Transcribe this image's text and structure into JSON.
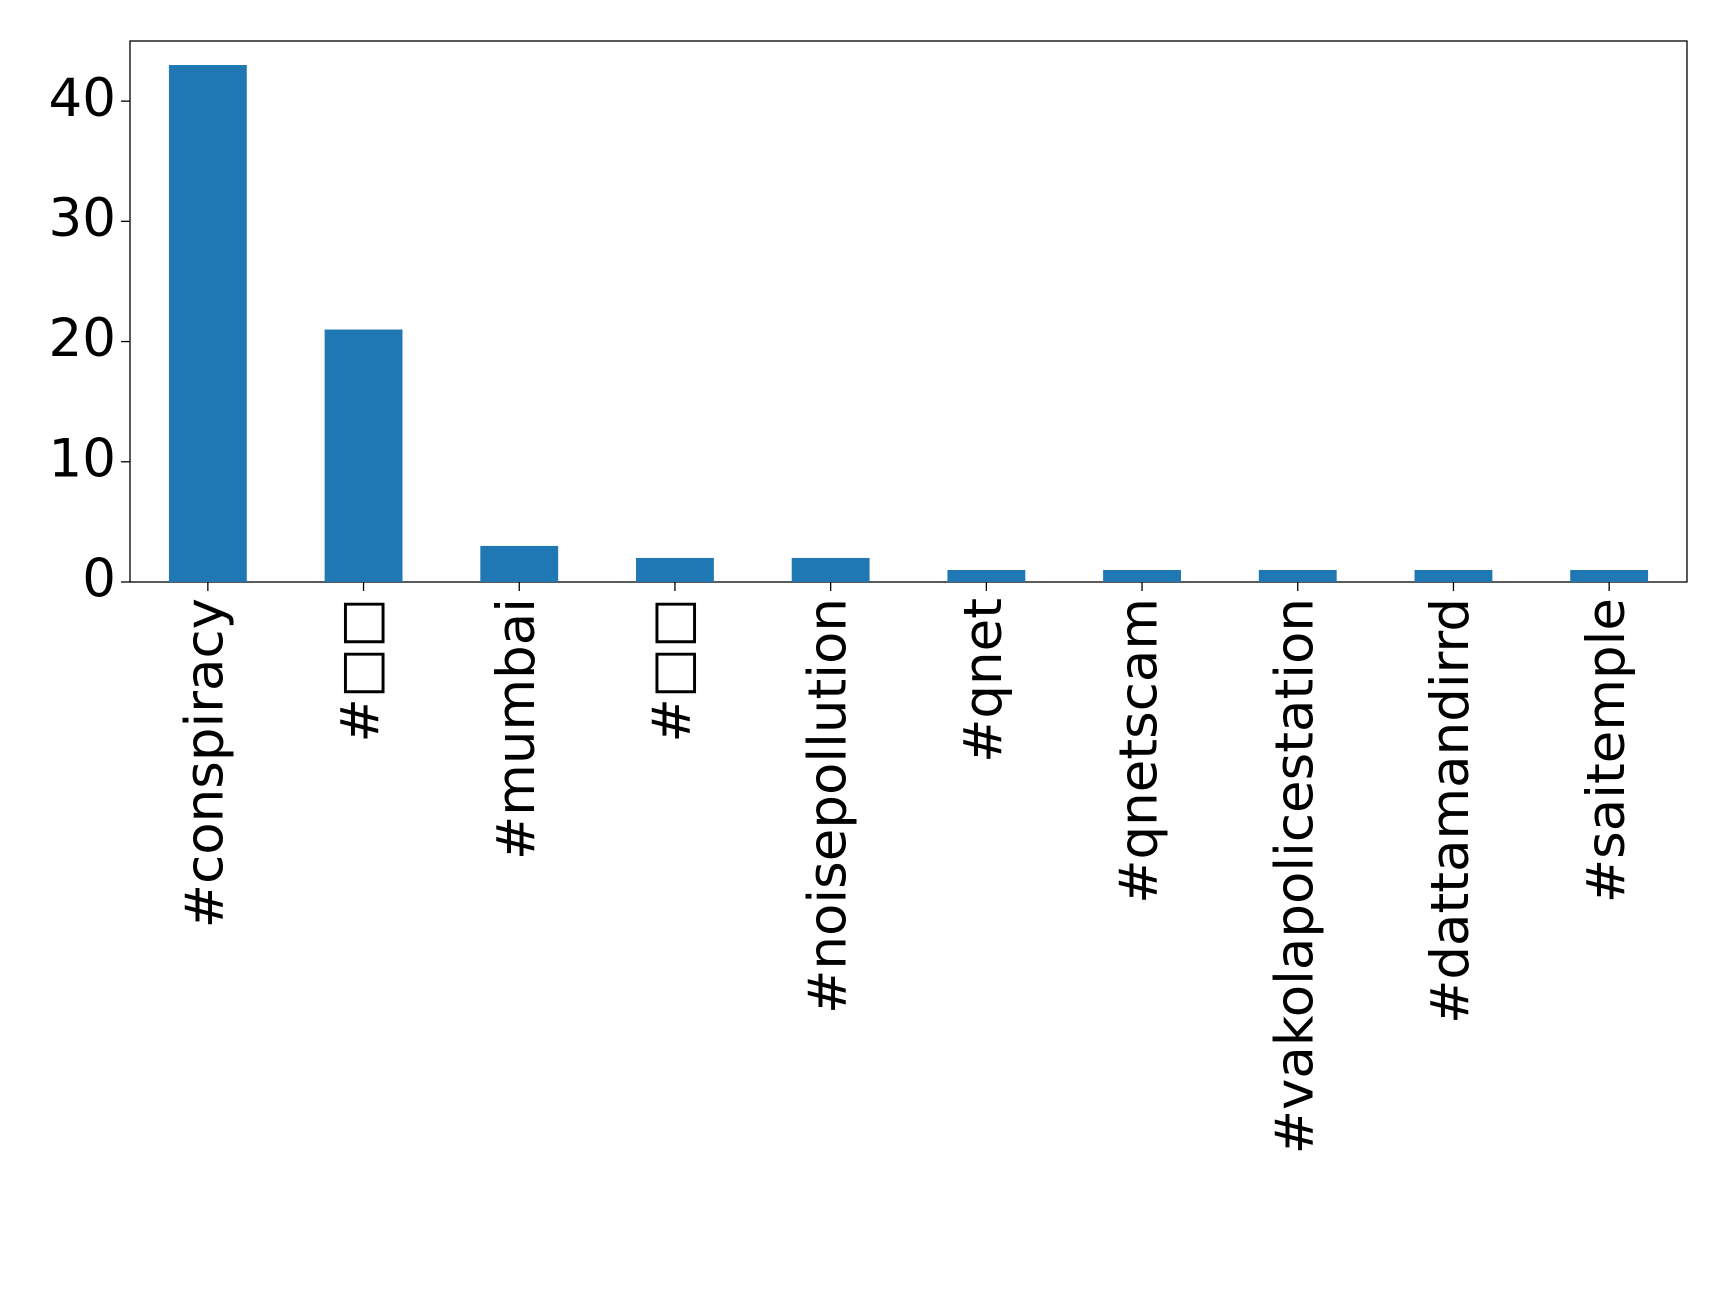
{
  "chart_data": {
    "type": "bar",
    "categories": [
      "#conspiracy",
      "#□□",
      "#mumbai",
      "#□□",
      "#noisepollution",
      "#qnet",
      "#qnetscam",
      "#vakolapolicestation",
      "#dattamandirrd",
      "#saitemple"
    ],
    "values": [
      43,
      21,
      3,
      2,
      2,
      1,
      1,
      1,
      1,
      1
    ],
    "color": "#1f77b4",
    "ylim": [
      0,
      45
    ],
    "yticks": [
      0,
      10,
      20,
      30,
      40
    ],
    "grid": false
  }
}
